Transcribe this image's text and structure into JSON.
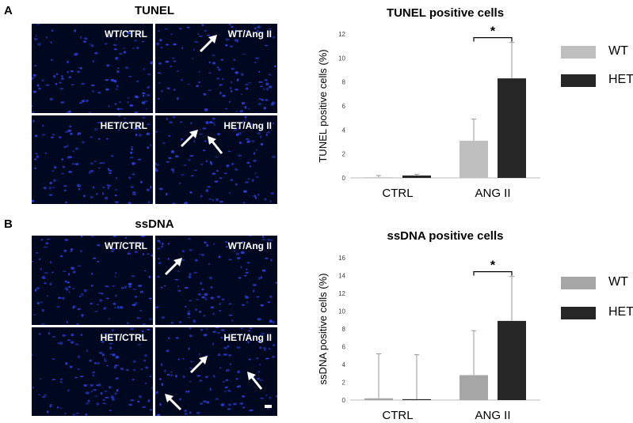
{
  "panels": [
    {
      "letter": "A",
      "micrograph": {
        "title": "TUNEL",
        "tiles": [
          "WT/CTRL",
          "WT/Ang II",
          "HET/CTRL",
          "HET/Ang II"
        ],
        "nucleus_color": "#2a3fd8",
        "background_color": "#000820"
      },
      "chart_data": {
        "type": "bar",
        "title": "TUNEL positive cells",
        "ylabel": "TUNEL positive cells (%)",
        "xlabel": "",
        "categories": [
          "CTRL",
          "ANG II"
        ],
        "ylim": [
          0,
          12
        ],
        "yticks": [
          0,
          2,
          4,
          6,
          8,
          10,
          12
        ],
        "grid": false,
        "legend": "right",
        "series": [
          {
            "name": "WT",
            "color": "#bfbfbf",
            "values": [
              0.05,
              3.1
            ],
            "errors": [
              0.15,
              1.8
            ]
          },
          {
            "name": "HET",
            "color": "#262626",
            "values": [
              0.2,
              8.3
            ],
            "errors": [
              0.1,
              3.0
            ]
          }
        ],
        "significance": {
          "label": "*",
          "category": "ANG II"
        }
      }
    },
    {
      "letter": "B",
      "micrograph": {
        "title": "ssDNA",
        "tiles": [
          "WT/CTRL",
          "WT/Ang II",
          "HET/CTRL",
          "HET/Ang II"
        ],
        "nucleus_color": "#2a3fd8",
        "background_color": "#000820"
      },
      "chart_data": {
        "type": "bar",
        "title": "ssDNA positive cells",
        "ylabel": "ssDNA positive cells (%)",
        "xlabel": "",
        "categories": [
          "CTRL",
          "ANG II"
        ],
        "ylim": [
          0,
          16
        ],
        "yticks": [
          0,
          2,
          4,
          6,
          8,
          10,
          12,
          14,
          16
        ],
        "grid": false,
        "legend": "right",
        "series": [
          {
            "name": "WT",
            "color": "#a6a6a6",
            "values": [
              0.2,
              2.8
            ],
            "errors": [
              5.0,
              5.0
            ]
          },
          {
            "name": "HET",
            "color": "#262626",
            "values": [
              0.1,
              8.9
            ],
            "errors": [
              5.0,
              5.0
            ]
          }
        ],
        "significance": {
          "label": "*",
          "category": "ANG II"
        }
      }
    }
  ]
}
